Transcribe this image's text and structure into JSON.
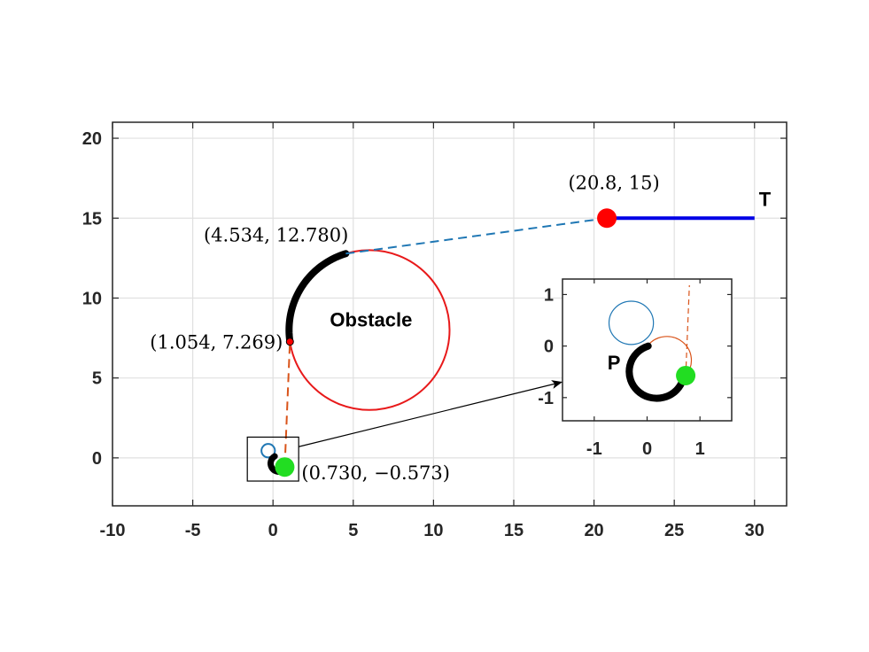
{
  "chart_data": {
    "type": "line",
    "title": "",
    "xlabel": "",
    "ylabel": "",
    "xlim": [
      -10,
      32
    ],
    "ylim": [
      -3,
      21
    ],
    "xticks": [
      "-10",
      "-5",
      "0",
      "5",
      "10",
      "15",
      "20",
      "25",
      "30"
    ],
    "yticks": [
      "0",
      "5",
      "10",
      "15",
      "20"
    ],
    "grid": true,
    "obstacle": {
      "label": "Obstacle",
      "center": [
        6,
        8
      ],
      "radius": 5,
      "color": "#e8191a"
    },
    "pursuer_circle": {
      "center": [
        -0.3,
        0.45
      ],
      "radius": 0.42,
      "color": "#1f77b4"
    },
    "target_point": {
      "x": 20.8,
      "y": 15,
      "label": "(20.8, 15)",
      "color": "#ff0000"
    },
    "target_path": {
      "from": [
        20.8,
        15
      ],
      "to": [
        30,
        15
      ],
      "label": "T",
      "color": "#0000e6"
    },
    "tangent_point_upper": {
      "x": 4.534,
      "y": 12.78,
      "label": "(4.534, 12.780)"
    },
    "tangent_point_lower": {
      "x": 1.054,
      "y": 7.269,
      "label": "(1.054, 7.269)"
    },
    "start_point": {
      "x": 0.73,
      "y": -0.573,
      "label": "(0.730, −0.573)",
      "color": "#22dd22"
    },
    "segments": [
      {
        "name": "dashed-upper",
        "from": [
          4.534,
          12.78
        ],
        "to": [
          20.8,
          15
        ],
        "color": "#1f77b4"
      },
      {
        "name": "dashed-lower",
        "from": [
          0.73,
          -0.573
        ],
        "to": [
          1.054,
          7.269
        ],
        "color": "#d95319"
      }
    ],
    "inset": {
      "xlim": [
        -1.6,
        1.6
      ],
      "ylim": [
        -1.45,
        1.3
      ],
      "xticks": [
        "-1",
        "0",
        "1"
      ],
      "yticks": [
        "1",
        "0",
        "-1"
      ],
      "label": "P"
    }
  }
}
